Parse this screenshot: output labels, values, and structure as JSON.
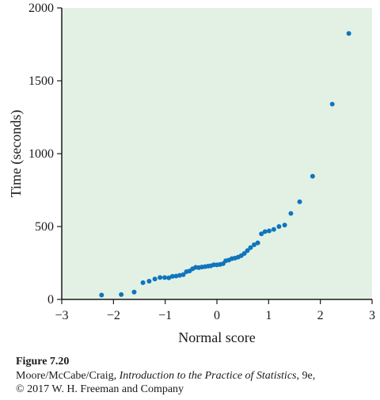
{
  "chart_data": {
    "type": "scatter",
    "xlabel": "Normal score",
    "ylabel": "Time (seconds)",
    "xlim": [
      -3,
      3
    ],
    "ylim": [
      0,
      2000
    ],
    "x_ticks": [
      -3,
      -2,
      -1,
      0,
      1,
      2,
      3
    ],
    "x_tick_labels": [
      "−3",
      "−2",
      "−1",
      "0",
      "1",
      "2",
      "3"
    ],
    "y_ticks": [
      0,
      500,
      1000,
      1500,
      2000
    ],
    "y_tick_labels": [
      "0",
      "500",
      "1000",
      "1500",
      "2000"
    ],
    "grid": false,
    "background_color": "#e3f1e5",
    "point_color": "#0f75bd",
    "points": [
      {
        "x": -2.23,
        "y": 30
      },
      {
        "x": -1.85,
        "y": 33
      },
      {
        "x": -1.6,
        "y": 50
      },
      {
        "x": -1.43,
        "y": 115
      },
      {
        "x": -1.31,
        "y": 125
      },
      {
        "x": -1.2,
        "y": 140
      },
      {
        "x": -1.1,
        "y": 150
      },
      {
        "x": -1.01,
        "y": 150
      },
      {
        "x": -0.93,
        "y": 148
      },
      {
        "x": -0.86,
        "y": 158
      },
      {
        "x": -0.79,
        "y": 160
      },
      {
        "x": -0.72,
        "y": 165
      },
      {
        "x": -0.65,
        "y": 170
      },
      {
        "x": -0.59,
        "y": 190
      },
      {
        "x": -0.53,
        "y": 195
      },
      {
        "x": -0.47,
        "y": 210
      },
      {
        "x": -0.41,
        "y": 220
      },
      {
        "x": -0.35,
        "y": 218
      },
      {
        "x": -0.29,
        "y": 222
      },
      {
        "x": -0.23,
        "y": 225
      },
      {
        "x": -0.17,
        "y": 228
      },
      {
        "x": -0.12,
        "y": 230
      },
      {
        "x": -0.06,
        "y": 238
      },
      {
        "x": 0.0,
        "y": 237
      },
      {
        "x": 0.06,
        "y": 240
      },
      {
        "x": 0.12,
        "y": 245
      },
      {
        "x": 0.17,
        "y": 265
      },
      {
        "x": 0.23,
        "y": 270
      },
      {
        "x": 0.29,
        "y": 280
      },
      {
        "x": 0.35,
        "y": 283
      },
      {
        "x": 0.41,
        "y": 290
      },
      {
        "x": 0.47,
        "y": 300
      },
      {
        "x": 0.53,
        "y": 315
      },
      {
        "x": 0.59,
        "y": 335
      },
      {
        "x": 0.65,
        "y": 355
      },
      {
        "x": 0.72,
        "y": 375
      },
      {
        "x": 0.79,
        "y": 388
      },
      {
        "x": 0.86,
        "y": 450
      },
      {
        "x": 0.93,
        "y": 465
      },
      {
        "x": 1.01,
        "y": 470
      },
      {
        "x": 1.1,
        "y": 480
      },
      {
        "x": 1.2,
        "y": 500
      },
      {
        "x": 1.31,
        "y": 510
      },
      {
        "x": 1.43,
        "y": 590
      },
      {
        "x": 1.6,
        "y": 670
      },
      {
        "x": 1.85,
        "y": 845
      },
      {
        "x": 2.23,
        "y": 1340
      },
      {
        "x": 2.55,
        "y": 1825
      }
    ]
  },
  "caption": {
    "figure_label": "Figure 7.20",
    "authors": "Moore/McCabe/Craig, ",
    "book_title": "Introduction to the Practice of Statistics",
    "edition": ", 9e,",
    "copyright": "© 2017 W. H. Freeman and Company"
  }
}
